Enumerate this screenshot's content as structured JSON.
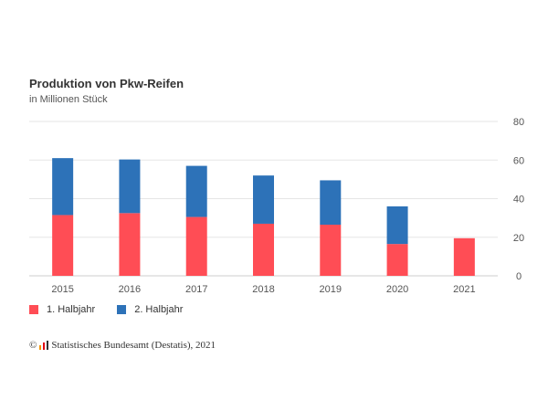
{
  "chart_data": {
    "type": "bar",
    "stacked": true,
    "title": "Produktion von Pkw-Reifen",
    "subtitle": "in Millionen Stück",
    "categories": [
      "2015",
      "2016",
      "2017",
      "2018",
      "2019",
      "2020",
      "2021"
    ],
    "series": [
      {
        "name": "1. Halbjahr",
        "color": "#ff4d55",
        "values": [
          31.5,
          32.5,
          30.5,
          27,
          26.5,
          16.5,
          19.5
        ]
      },
      {
        "name": "2. Halbjahr",
        "color": "#2d72b8",
        "values": [
          29.5,
          27.8,
          26.5,
          25,
          23,
          19.5,
          null
        ]
      }
    ],
    "ylim": [
      0,
      80
    ],
    "yticks": [
      "0",
      "20",
      "40",
      "60",
      "80"
    ],
    "ytick_values": [
      0,
      20,
      40,
      60,
      80
    ],
    "y_axis_position": "right",
    "grid": true,
    "legend_position": "bottom-left"
  },
  "source": {
    "copyright_symbol": "©",
    "text": "Statistisches Bundesamt (Destatis), 2021",
    "logo_icon": "destatis-logo-icon"
  }
}
